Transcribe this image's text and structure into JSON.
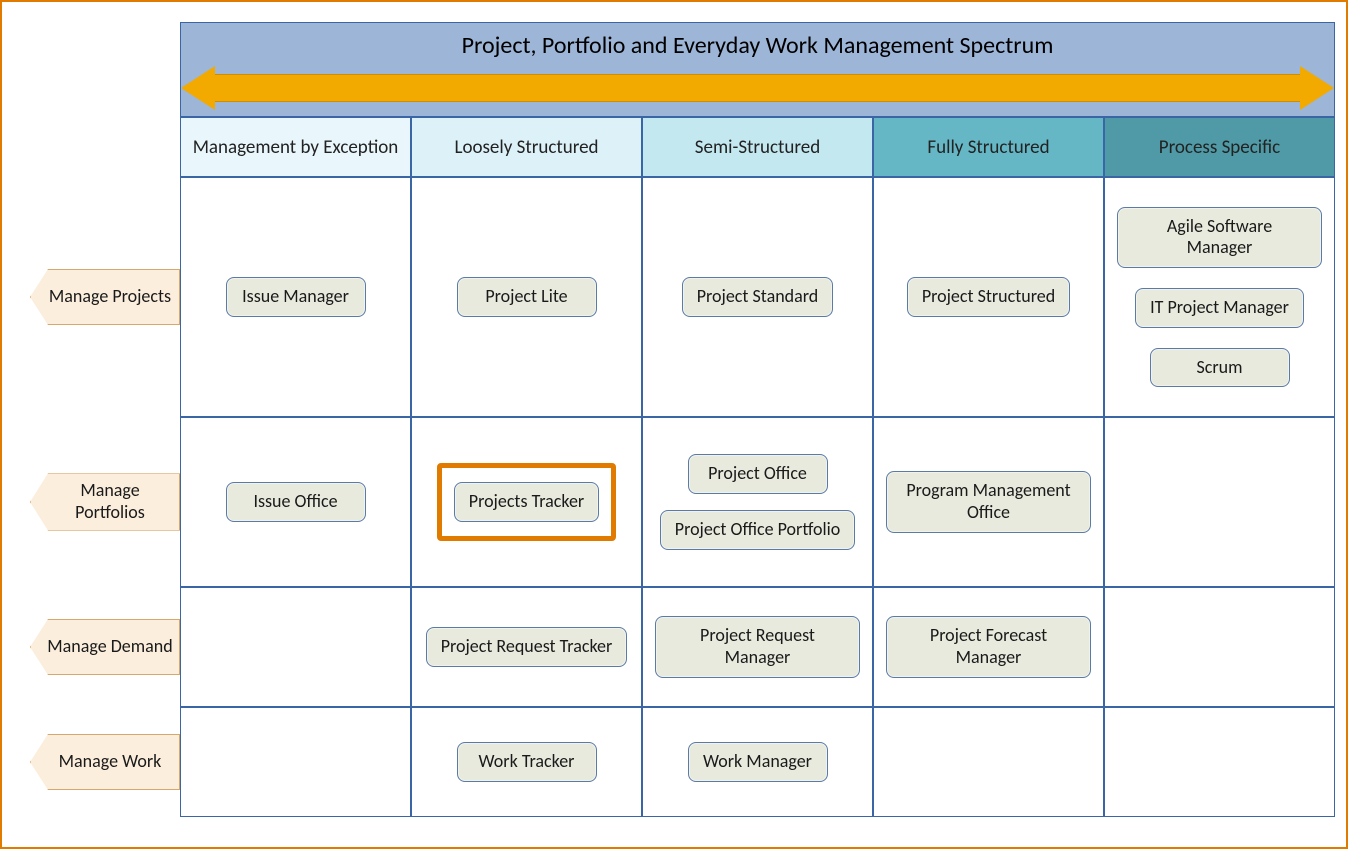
{
  "type": "matrix-diagram",
  "title": "Project, Portfolio and Everyday Work Management Spectrum",
  "arrow_color": "#f2a900",
  "arrow_border": "#d28c00",
  "grid_border_color": "#3a66a6",
  "page_border_color": "#e07b00",
  "titlebar_bg": "#9db5d7",
  "pill_bg": "#e8eadd",
  "pill_border": "#5a7ba8",
  "rowlabel_bg": "#fbeedd",
  "rowlabel_border": "#d7a86e",
  "highlight_border": "#e07b00",
  "columns": [
    {
      "label": "Management by Exception",
      "bg": "#e9f6fb"
    },
    {
      "label": "Loosely Structured",
      "bg": "#ddf1f8"
    },
    {
      "label": "Semi-Structured",
      "bg": "#c4e8f0"
    },
    {
      "label": "Fully Structured",
      "bg": "#66b7c5"
    },
    {
      "label": "Process Specific",
      "bg": "#4f9aa6"
    }
  ],
  "rows": [
    {
      "label": "Manage Projects"
    },
    {
      "label": "Manage Portfolios"
    },
    {
      "label": "Manage Demand"
    },
    {
      "label": "Manage Work"
    }
  ],
  "cells": {
    "r0c0": [
      "Issue Manager"
    ],
    "r0c1": [
      "Project Lite"
    ],
    "r0c2": [
      "Project Standard"
    ],
    "r0c3": [
      "Project Structured"
    ],
    "r0c4": [
      "Agile Software Manager",
      "IT Project Manager",
      "Scrum"
    ],
    "r1c0": [
      "Issue Office"
    ],
    "r1c1": [
      "Projects Tracker"
    ],
    "r1c2": [
      "Project Office",
      "Project Office Portfolio"
    ],
    "r1c3": [
      "Program Management Office"
    ],
    "r1c4": [],
    "r2c0": [],
    "r2c1": [
      "Project Request Tracker"
    ],
    "r2c2": [
      "Project Request Manager"
    ],
    "r2c3": [
      "Project Forecast Manager"
    ],
    "r2c4": [],
    "r3c0": [],
    "r3c1": [
      "Work Tracker"
    ],
    "r3c2": [
      "Work Manager"
    ],
    "r3c3": [],
    "r3c4": []
  },
  "highlighted_cell": "r1c1"
}
